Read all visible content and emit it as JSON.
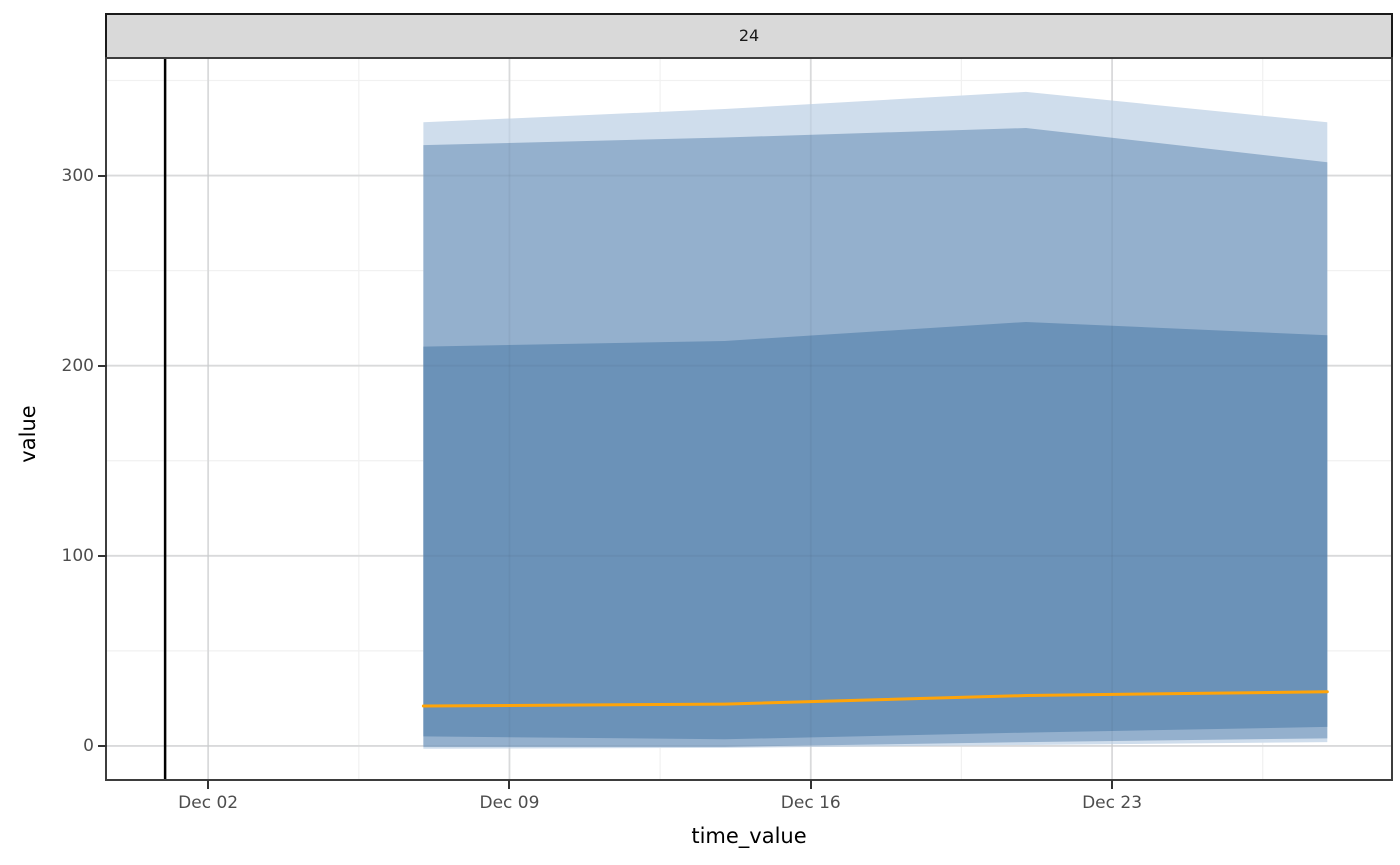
{
  "figure": {
    "facet_label": "24",
    "background": "#ffffff",
    "strip_bg": "#d9d9d9",
    "strip_border": "#1a1a1a",
    "panel_border": "#3d3d3d"
  },
  "chart_data": {
    "type": "area",
    "title": "24",
    "xlabel": "time_value",
    "ylabel": "value",
    "x_unit_note": "days measured from Dec 01",
    "x_domain": [
      -1.35,
      28.48
    ],
    "y_domain": [
      -17.4,
      361.3
    ],
    "x_ticks": [
      {
        "day": 1,
        "label": "Dec 02"
      },
      {
        "day": 8,
        "label": "Dec 09"
      },
      {
        "day": 15,
        "label": "Dec 16"
      },
      {
        "day": 22,
        "label": "Dec 23"
      }
    ],
    "x_minor_ticks": [
      4.5,
      11.5,
      18.5,
      25.5
    ],
    "y_ticks": [
      {
        "value": 0,
        "label": "0"
      },
      {
        "value": 100,
        "label": "100"
      },
      {
        "value": 200,
        "label": "200"
      },
      {
        "value": 300,
        "label": "300"
      }
    ],
    "y_minor_ticks": [
      50,
      150,
      250,
      350
    ],
    "grid": {
      "on": true,
      "major_color": "#e6e6e6",
      "minor_color": "#f1f1f1",
      "overlay_color": "rgba(50,65,90,0.07)"
    },
    "legend": "none",
    "reference_vline": {
      "day": 0,
      "date": "Dec 01",
      "color": "#000000",
      "width": 2.5
    },
    "points": {
      "dates": [
        "Dec 07",
        "Dec 14",
        "Dec 21",
        "Dec 28"
      ],
      "days": [
        6,
        13,
        20,
        27
      ]
    },
    "median": {
      "name": "median-forecast-line",
      "color": "#ffa409",
      "width": 3,
      "values": [
        21,
        22,
        26.5,
        28.5
      ]
    },
    "bands": [
      {
        "name": "outer-band",
        "fill": "#cfddec",
        "upper": [
          328,
          335,
          344,
          328
        ],
        "lower": [
          -1.5,
          -1,
          0.5,
          2
        ]
      },
      {
        "name": "middle-band",
        "fill": "#94b0cd",
        "upper": [
          316,
          320,
          325,
          307
        ],
        "lower": [
          -0.5,
          -0.5,
          2,
          4
        ]
      },
      {
        "name": "inner-band",
        "fill": "#6b92b8",
        "upper": [
          210,
          213,
          223,
          216
        ],
        "lower": [
          5,
          3.5,
          7,
          10
        ]
      }
    ]
  }
}
